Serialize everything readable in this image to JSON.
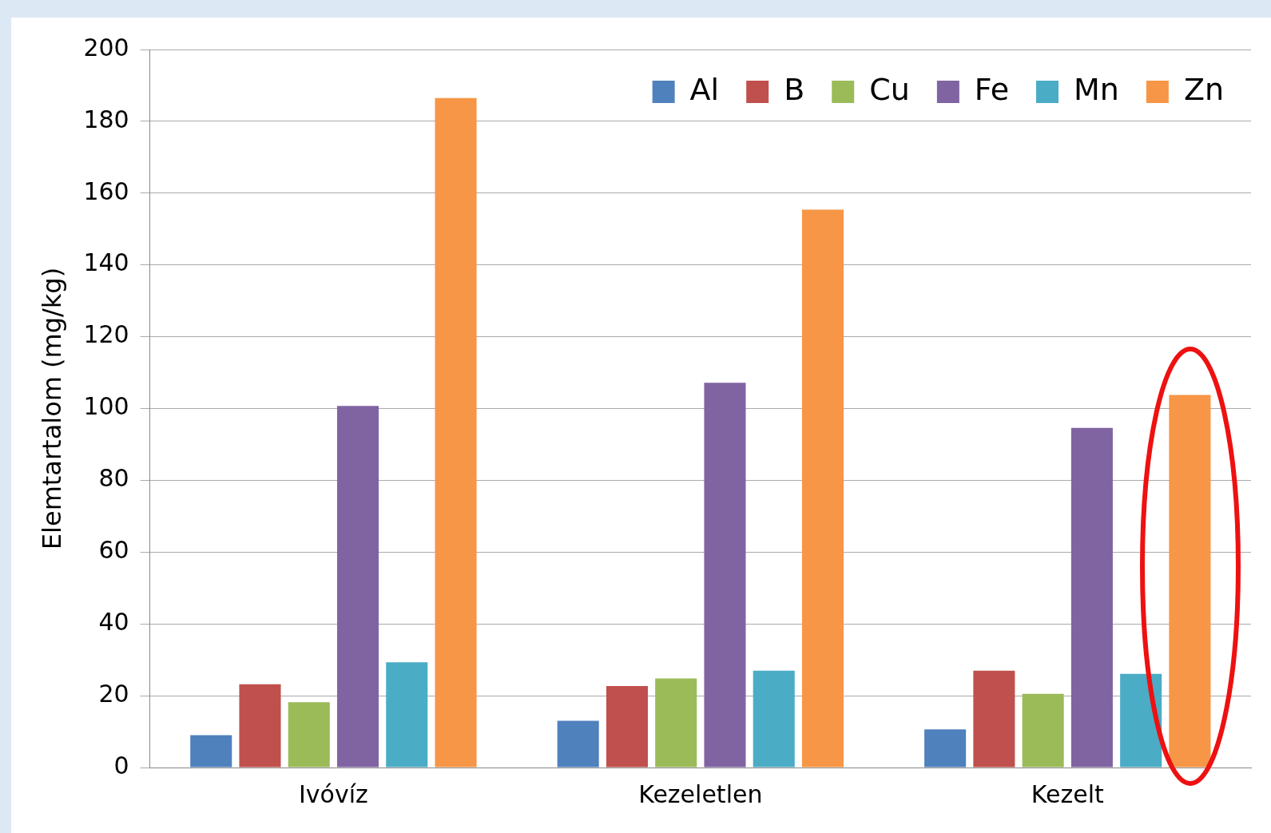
{
  "chart_data": {
    "type": "bar",
    "ylabel": "Elemtartalom (mg/kg)",
    "categories": [
      "Ivóvíz",
      "Kezeletlen",
      "Kezelt"
    ],
    "series": [
      {
        "name": "Al",
        "color": "#4f81bd",
        "values": [
          9,
          13,
          10.6
        ]
      },
      {
        "name": "B",
        "color": "#c0504d",
        "values": [
          23.2,
          22.7,
          27
        ]
      },
      {
        "name": "Cu",
        "color": "#9bbb59",
        "values": [
          18.2,
          24.8,
          20.5
        ]
      },
      {
        "name": "Fe",
        "color": "#8064a2",
        "values": [
          100.7,
          107.2,
          94.6
        ]
      },
      {
        "name": "Mn",
        "color": "#4bacc6",
        "values": [
          29.3,
          27,
          26.1
        ]
      },
      {
        "name": "Zn",
        "color": "#f79646",
        "values": [
          186.5,
          155.4,
          103.8
        ]
      }
    ],
    "ylim": [
      0,
      200
    ],
    "yticks": [
      0,
      20,
      40,
      60,
      80,
      100,
      120,
      140,
      160,
      180,
      200
    ],
    "grid": "y",
    "legend": "top right"
  }
}
